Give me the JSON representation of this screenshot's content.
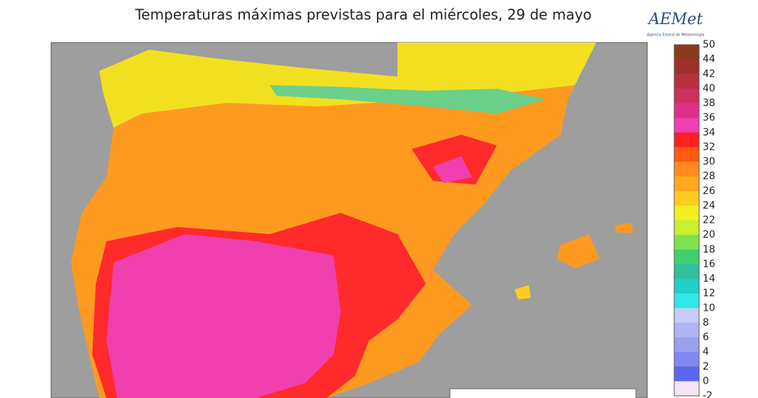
{
  "header": {
    "title": "Temperaturas máximas previstas para el miércoles, 29 de mayo",
    "logo": "AEMet",
    "logo_subtitle": "Agencia Estatal de Meteorología"
  },
  "legend": {
    "levels": [
      50,
      44,
      42,
      40,
      38,
      36,
      34,
      32,
      30,
      28,
      26,
      24,
      22,
      20,
      18,
      16,
      14,
      12,
      10,
      8,
      6,
      4,
      2,
      0,
      -2
    ],
    "colors": [
      "#8b3a1a",
      "#a0302a",
      "#b83040",
      "#cc3060",
      "#e0308a",
      "#f040b0",
      "#ff2020",
      "#ff5a10",
      "#ff8a20",
      "#ffa820",
      "#ffcc20",
      "#f2f020",
      "#c8f030",
      "#80e050",
      "#40d070",
      "#30c0a0",
      "#20d0c8",
      "#30e8e8",
      "#c8ccf4",
      "#b0b4f2",
      "#9aa0f0",
      "#8088f0",
      "#5a66f0",
      "#f4e4f4"
    ]
  }
}
